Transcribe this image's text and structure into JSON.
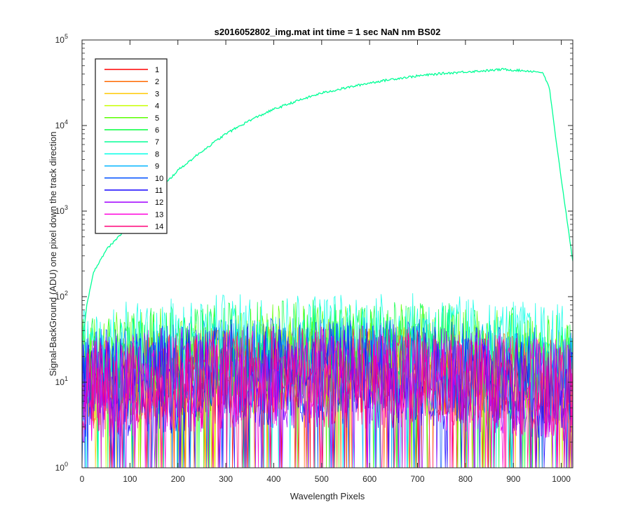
{
  "chart_data": {
    "type": "line",
    "title": "s2016052802_img.mat int time = 1 sec  NaN nm BS02",
    "xlabel": "Wavelength Pixels",
    "ylabel": "Signal-BackGround (ADU) one pixel down the track direction",
    "xlim": [
      0,
      1024
    ],
    "ylim": [
      1,
      100000
    ],
    "yscale": "log",
    "xticks": [
      "0",
      "100",
      "200",
      "300",
      "400",
      "500",
      "600",
      "700",
      "800",
      "900",
      "1000"
    ],
    "xtick_values": [
      0,
      100,
      200,
      300,
      400,
      500,
      600,
      700,
      800,
      900,
      1000
    ],
    "yticks": [
      {
        "base": "10",
        "exp": "0"
      },
      {
        "base": "10",
        "exp": "1"
      },
      {
        "base": "10",
        "exp": "2"
      },
      {
        "base": "10",
        "exp": "3"
      },
      {
        "base": "10",
        "exp": "4"
      },
      {
        "base": "10",
        "exp": "5"
      }
    ],
    "ytick_values": [
      1,
      10,
      100,
      1000,
      10000,
      100000
    ],
    "grid": false,
    "legend_position": "top-left",
    "series": [
      {
        "name": "1",
        "color": "#ff0000",
        "kind": "noise",
        "low": 3,
        "high": 30
      },
      {
        "name": "2",
        "color": "#ff6a00",
        "kind": "noise",
        "low": 3,
        "high": 32
      },
      {
        "name": "3",
        "color": "#ffc800",
        "kind": "noise",
        "low": 3,
        "high": 35
      },
      {
        "name": "4",
        "color": "#c8ff00",
        "kind": "noise",
        "low": 3,
        "high": 38
      },
      {
        "name": "5",
        "color": "#5aff00",
        "kind": "noise",
        "low": 5,
        "high": 60
      },
      {
        "name": "6",
        "color": "#00ff3c",
        "kind": "noise",
        "low": 5,
        "high": 65
      },
      {
        "name": "7",
        "color": "#00ff96",
        "kind": "strong",
        "points": [
          [
            0,
            25
          ],
          [
            10,
            80
          ],
          [
            25,
            200
          ],
          [
            50,
            350
          ],
          [
            100,
            700
          ],
          [
            150,
            1500
          ],
          [
            200,
            3000
          ],
          [
            250,
            5000
          ],
          [
            300,
            8000
          ],
          [
            350,
            11500
          ],
          [
            400,
            15500
          ],
          [
            450,
            19500
          ],
          [
            500,
            24000
          ],
          [
            550,
            27500
          ],
          [
            600,
            31500
          ],
          [
            650,
            35000
          ],
          [
            700,
            38000
          ],
          [
            750,
            40500
          ],
          [
            800,
            42500
          ],
          [
            850,
            44000
          ],
          [
            880,
            45500
          ],
          [
            900,
            44500
          ],
          [
            930,
            43500
          ],
          [
            960,
            42000
          ],
          [
            975,
            28000
          ],
          [
            990,
            6000
          ],
          [
            1005,
            1500
          ],
          [
            1024,
            260
          ]
        ]
      },
      {
        "name": "8",
        "color": "#00ffe6",
        "kind": "noise",
        "low": 8,
        "high": 80
      },
      {
        "name": "9",
        "color": "#00b4ff",
        "kind": "noise",
        "low": 3,
        "high": 40
      },
      {
        "name": "10",
        "color": "#0050ff",
        "kind": "noise",
        "low": 3,
        "high": 40
      },
      {
        "name": "11",
        "color": "#1400ff",
        "kind": "noise",
        "low": 2,
        "high": 35
      },
      {
        "name": "12",
        "color": "#a000ff",
        "kind": "noise",
        "low": 2,
        "high": 35
      },
      {
        "name": "13",
        "color": "#ff00dc",
        "kind": "noise",
        "low": 2,
        "high": 30
      },
      {
        "name": "14",
        "color": "#ff0078",
        "kind": "noise",
        "low": 2,
        "high": 30
      }
    ]
  }
}
